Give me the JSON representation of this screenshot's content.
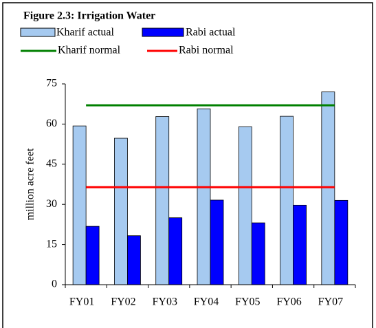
{
  "chart_data": {
    "type": "bar",
    "title": "Figure 2.3: Irrigation Water",
    "y_label": "million acre feet",
    "categories": [
      "FY01",
      "FY02",
      "FY03",
      "FY04",
      "FY05",
      "FY06",
      "FY07"
    ],
    "series": [
      {
        "name": "Kharif actual",
        "type": "bar",
        "color": "#a6caf0",
        "values": [
          59.3,
          54.7,
          62.8,
          65.7,
          59,
          62.9,
          72
        ]
      },
      {
        "name": "Rabi actual",
        "type": "bar",
        "color": "#0000ff",
        "values": [
          21.8,
          18.3,
          25,
          31.6,
          23.1,
          29.7,
          31.5
        ]
      },
      {
        "name": "Kharif normal",
        "type": "line",
        "color": "#008000",
        "values": [
          67,
          67,
          67,
          67,
          67,
          67,
          67
        ]
      },
      {
        "name": "Rabi normal",
        "type": "line",
        "color": "#ff0000",
        "values": [
          36.4,
          36.4,
          36.4,
          36.4,
          36.4,
          36.4,
          36.4
        ]
      }
    ],
    "ylim": [
      0,
      75
    ],
    "yticks": [
      0,
      15,
      30,
      45,
      60,
      75
    ],
    "grid": false
  }
}
